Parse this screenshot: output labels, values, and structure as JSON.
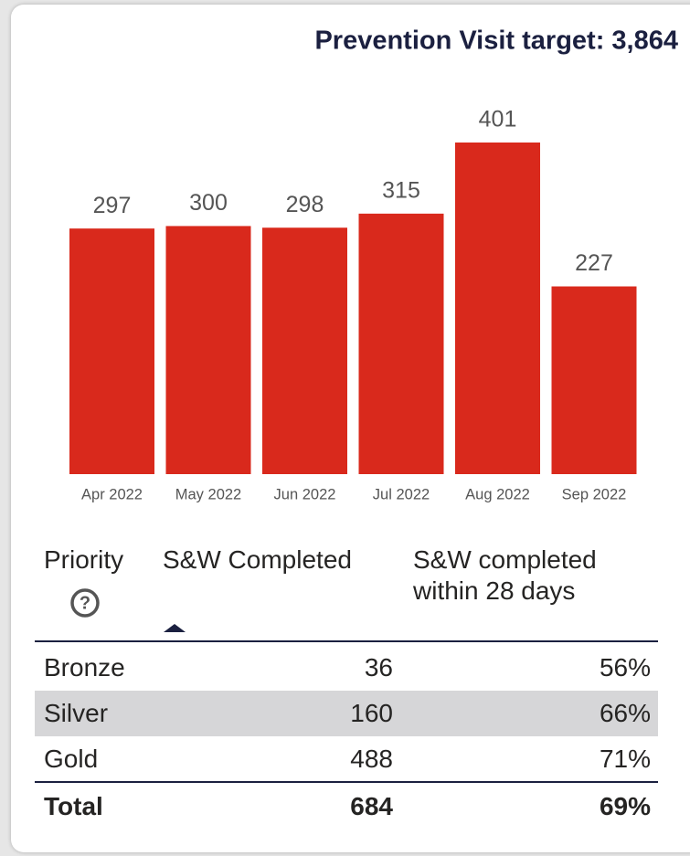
{
  "chart_data": {
    "type": "bar",
    "title": "Prevention Visit target: 3,864",
    "categories": [
      "Apr 2022",
      "May 2022",
      "Jun 2022",
      "Jul 2022",
      "Aug 2022",
      "Sep 2022"
    ],
    "values": [
      297,
      300,
      298,
      315,
      401,
      227
    ],
    "color": "#d9291c"
  },
  "table": {
    "headers": [
      "Priority",
      "S&W Completed",
      "S&W completed within 28 days"
    ],
    "rows": [
      [
        "Bronze",
        "36",
        "56%"
      ],
      [
        "Silver",
        "160",
        "66%"
      ],
      [
        "Gold",
        "488",
        "71%"
      ]
    ],
    "total": [
      "Total",
      "684",
      "69%"
    ]
  }
}
